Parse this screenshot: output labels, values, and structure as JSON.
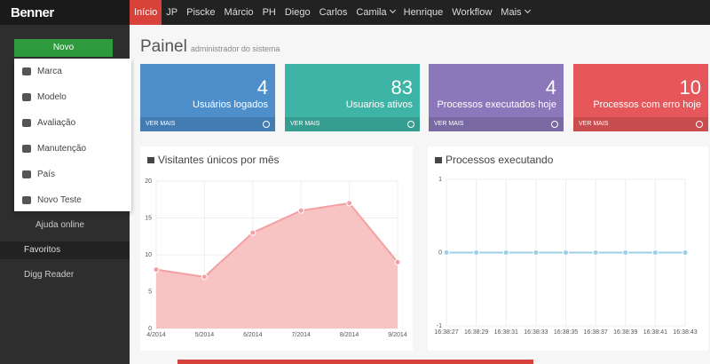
{
  "sidebar": {
    "brand": "Benner",
    "button": "Novo",
    "menu": [
      "Marca",
      "Modelo",
      "Avaliação",
      "Manutenção",
      "País",
      "Novo Teste"
    ],
    "help": "Ajuda online",
    "favorites": "Favoritos",
    "favorite_items": [
      "Digg Reader"
    ]
  },
  "nav": [
    "Início",
    "JP",
    "Piscke",
    "Márcio",
    "PH",
    "Diego",
    "Carlos",
    "Camila",
    "Henrique",
    "Workflow",
    "Mais"
  ],
  "header": {
    "title": "Painel",
    "subtitle": "administrador do sistema"
  },
  "tiles": [
    {
      "value": 4,
      "label": "Usuários logados",
      "link": "VER MAIS",
      "color": "#4d8ecb"
    },
    {
      "value": 83,
      "label": "Usuarios ativos",
      "link": "VER MAIS",
      "color": "#3db4a6"
    },
    {
      "value": 4,
      "label": "Processos executados hoje",
      "link": "VER MAIS",
      "color": "#8a78ba"
    },
    {
      "value": 10,
      "label": "Processos com erro hoje",
      "link": "VER MAIS",
      "color": "#e5575a"
    }
  ],
  "chart_data": [
    {
      "type": "area",
      "title": "Visitantes únicos por mês",
      "categories": [
        "4/2014",
        "5/2014",
        "6/2014",
        "7/2014",
        "8/2014",
        "9/2014"
      ],
      "values": [
        8,
        7,
        13,
        16,
        17,
        9
      ],
      "color": "#f8c3c3",
      "line_color": "#f3a0a4",
      "ylim": [
        0,
        20
      ],
      "yticks": [
        0,
        5,
        10,
        15,
        20
      ],
      "grid": true
    },
    {
      "type": "line",
      "title": "Processos executando",
      "categories": [
        "16:38:27",
        "16:38:29",
        "16:38:31",
        "16:38:33",
        "16:38:35",
        "16:38:37",
        "16:38:39",
        "16:38:41",
        "16:38:43"
      ],
      "values": [
        0,
        0,
        0,
        0,
        0,
        0,
        0,
        0,
        0
      ],
      "color": "#9dcfe6",
      "ylim": [
        -1,
        1
      ],
      "yticks": [
        -1,
        0,
        1
      ],
      "grid": true
    }
  ]
}
